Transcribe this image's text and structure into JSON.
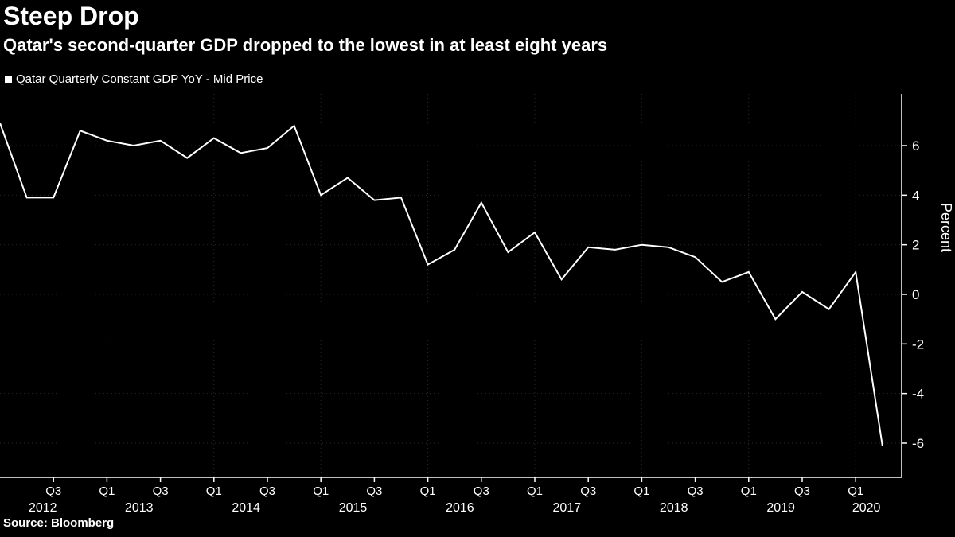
{
  "header": {
    "title": "Steep Drop",
    "subtitle": "Qatar's second-quarter GDP dropped to the lowest in at least eight years"
  },
  "legend": {
    "label": "Qatar Quarterly Constant GDP YoY - Mid Price",
    "marker_color": "#ffffff"
  },
  "footer": {
    "source": "Source: Bloomberg"
  },
  "chart_data": {
    "type": "line",
    "title": "Steep Drop",
    "subtitle": "Qatar's second-quarter GDP dropped to the lowest in at least eight years",
    "series_name": "Qatar Quarterly Constant GDP YoY - Mid Price",
    "ylabel": "Percent",
    "ylim": [
      -6.5,
      7.2
    ],
    "yticks": [
      6,
      4,
      2,
      0,
      -2,
      -4,
      -6
    ],
    "line_color": "#ffffff",
    "grid_color": "#2a2a2a",
    "x": [
      "Q1 2012",
      "Q2 2012",
      "Q3 2012",
      "Q4 2012",
      "Q1 2013",
      "Q2 2013",
      "Q3 2013",
      "Q4 2013",
      "Q1 2014",
      "Q2 2014",
      "Q3 2014",
      "Q4 2014",
      "Q1 2015",
      "Q2 2015",
      "Q3 2015",
      "Q4 2015",
      "Q1 2016",
      "Q2 2016",
      "Q3 2016",
      "Q4 2016",
      "Q1 2017",
      "Q2 2017",
      "Q3 2017",
      "Q4 2017",
      "Q1 2018",
      "Q2 2018",
      "Q3 2018",
      "Q4 2018",
      "Q1 2019",
      "Q2 2019",
      "Q3 2019",
      "Q4 2019",
      "Q1 2020",
      "Q2 2020"
    ],
    "values": [
      6.9,
      3.9,
      3.9,
      6.6,
      6.2,
      6.0,
      6.2,
      5.5,
      6.3,
      5.7,
      5.9,
      6.8,
      4.0,
      4.7,
      3.8,
      3.9,
      1.2,
      1.8,
      3.7,
      1.7,
      2.5,
      0.6,
      1.9,
      1.8,
      2.0,
      1.9,
      1.5,
      0.5,
      0.9,
      -1.0,
      0.1,
      -0.6,
      0.9,
      -6.1
    ],
    "x_axis": {
      "quarter_ticks": [
        {
          "label": "Q3",
          "i": 2
        },
        {
          "label": "Q1",
          "i": 4
        },
        {
          "label": "Q3",
          "i": 6
        },
        {
          "label": "Q1",
          "i": 8
        },
        {
          "label": "Q3",
          "i": 10
        },
        {
          "label": "Q1",
          "i": 12
        },
        {
          "label": "Q3",
          "i": 14
        },
        {
          "label": "Q1",
          "i": 16
        },
        {
          "label": "Q3",
          "i": 18
        },
        {
          "label": "Q1",
          "i": 20
        },
        {
          "label": "Q3",
          "i": 22
        },
        {
          "label": "Q1",
          "i": 24
        },
        {
          "label": "Q3",
          "i": 26
        },
        {
          "label": "Q1",
          "i": 28
        },
        {
          "label": "Q3",
          "i": 30
        },
        {
          "label": "Q1",
          "i": 32
        }
      ],
      "year_labels": [
        {
          "label": "2012",
          "i": 1.6
        },
        {
          "label": "2013",
          "i": 5.2
        },
        {
          "label": "2014",
          "i": 9.2
        },
        {
          "label": "2015",
          "i": 13.2
        },
        {
          "label": "2016",
          "i": 17.2
        },
        {
          "label": "2017",
          "i": 21.2
        },
        {
          "label": "2018",
          "i": 25.2
        },
        {
          "label": "2019",
          "i": 29.2
        },
        {
          "label": "2020",
          "i": 32.4
        }
      ],
      "year_grid": [
        4,
        8,
        12,
        16,
        20,
        24,
        28,
        32
      ]
    }
  }
}
